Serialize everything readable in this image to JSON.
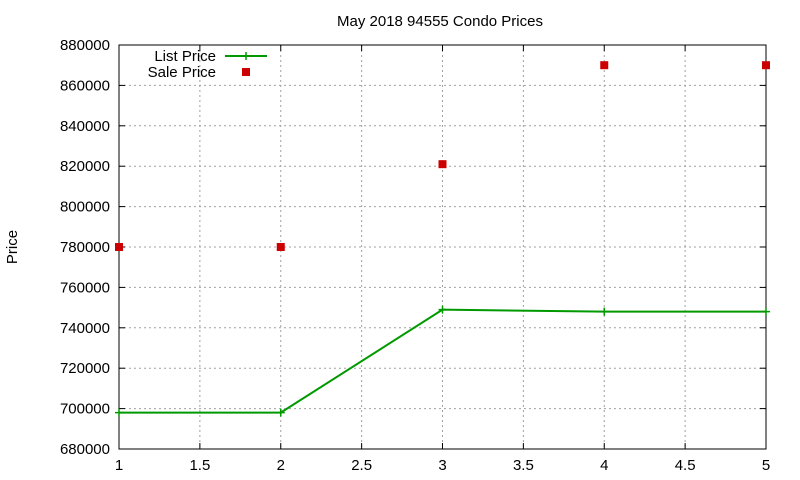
{
  "chart_data": {
    "type": "line",
    "title": "May 2018 94555 Condo Prices",
    "xlabel": "",
    "ylabel": "Price",
    "xlim": [
      1,
      5
    ],
    "ylim": [
      680000,
      880000
    ],
    "x_ticks": [
      "1",
      "1.5",
      "2",
      "2.5",
      "3",
      "3.5",
      "4",
      "4.5",
      "5"
    ],
    "y_ticks": [
      "680000",
      "700000",
      "720000",
      "740000",
      "760000",
      "780000",
      "800000",
      "820000",
      "840000",
      "860000",
      "880000"
    ],
    "grid": true,
    "legend_position": "top-left",
    "series": [
      {
        "name": "List Price",
        "style": "line-with-plus-markers",
        "color": "#009900",
        "x": [
          1,
          2,
          3,
          4,
          5
        ],
        "y": [
          698000,
          698000,
          749000,
          748000,
          748000
        ]
      },
      {
        "name": "Sale Price",
        "style": "square-points",
        "color": "#cc0000",
        "x": [
          1,
          2,
          3,
          4,
          5
        ],
        "y": [
          780000,
          780000,
          821000,
          870000,
          870000
        ]
      }
    ]
  }
}
